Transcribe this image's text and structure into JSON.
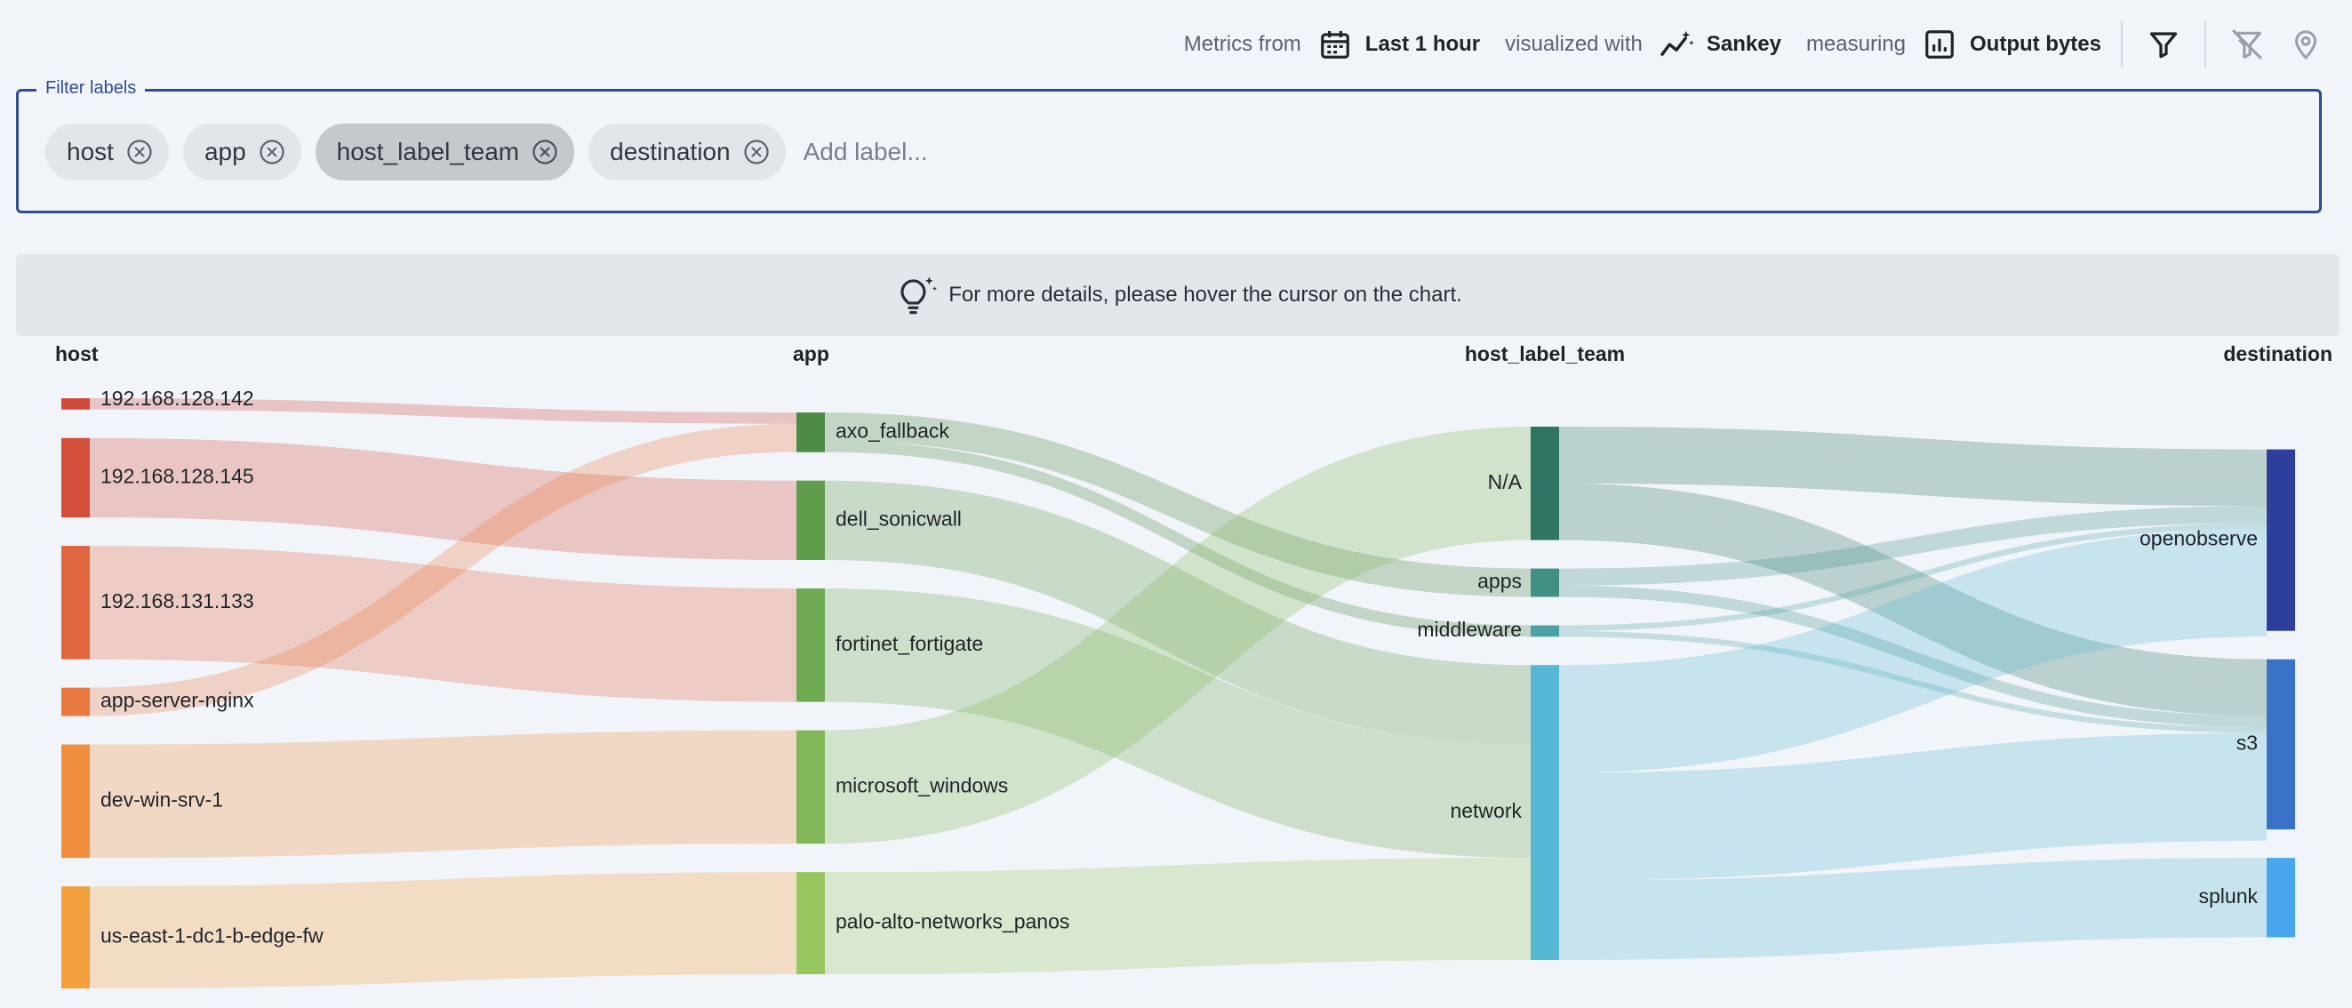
{
  "toolbar": {
    "metrics_from": "Metrics from",
    "time_range": "Last 1 hour",
    "visualized_with": "visualized with",
    "chart_kind": "Sankey",
    "measuring": "measuring",
    "measure": "Output bytes",
    "icons": [
      "calendar-icon",
      "trend-icon",
      "bar-chart-icon",
      "filter-icon",
      "filter-off-icon",
      "location-pin-icon"
    ]
  },
  "filter": {
    "legend": "Filter labels",
    "chips": [
      {
        "label": "host"
      },
      {
        "label": "app"
      },
      {
        "label": "host_label_team"
      },
      {
        "label": "destination"
      }
    ],
    "placeholder": "Add label..."
  },
  "hint": {
    "text": "For more details, please hover the cursor on the chart."
  },
  "chart_data": {
    "type": "sankey",
    "columns": [
      "host",
      "app",
      "host_label_team",
      "destination"
    ],
    "nodes": [
      {
        "id": "192.168.128.142",
        "col": 0,
        "value": 1,
        "color": "#d04a3c"
      },
      {
        "id": "192.168.128.145",
        "col": 0,
        "value": 7,
        "color": "#d4503b"
      },
      {
        "id": "192.168.131.133",
        "col": 0,
        "value": 10,
        "color": "#e06640"
      },
      {
        "id": "app-server-nginx",
        "col": 0,
        "value": 2.5,
        "color": "#e87a40"
      },
      {
        "id": "dev-win-srv-1",
        "col": 0,
        "value": 10,
        "color": "#ef8e3e"
      },
      {
        "id": "us-east-1-dc1-b-edge-fw",
        "col": 0,
        "value": 9,
        "color": "#f4a03e"
      },
      {
        "id": "axo_fallback",
        "col": 1,
        "value": 3.5,
        "color": "#4c8a46"
      },
      {
        "id": "dell_sonicwall",
        "col": 1,
        "value": 7,
        "color": "#5f9c4c"
      },
      {
        "id": "fortinet_fortigate",
        "col": 1,
        "value": 10,
        "color": "#6eaa52"
      },
      {
        "id": "microsoft_windows",
        "col": 1,
        "value": 10,
        "color": "#82b85a"
      },
      {
        "id": "palo-alto-networks_panos",
        "col": 1,
        "value": 9,
        "color": "#98c65e"
      },
      {
        "id": "N/A",
        "col": 2,
        "value": 10,
        "color": "#2f7563"
      },
      {
        "id": "apps",
        "col": 2,
        "value": 2.5,
        "color": "#3f8f84"
      },
      {
        "id": "middleware",
        "col": 2,
        "value": 1,
        "color": "#4ba2a6"
      },
      {
        "id": "network",
        "col": 2,
        "value": 26,
        "color": "#56b8d4"
      },
      {
        "id": "openobserve",
        "col": 3,
        "value": 16,
        "color": "#2e3e9c"
      },
      {
        "id": "s3",
        "col": 3,
        "value": 15,
        "color": "#3a72c8"
      },
      {
        "id": "splunk",
        "col": 3,
        "value": 7,
        "color": "#48a6f0"
      }
    ],
    "links": [
      {
        "source": "192.168.128.142",
        "target": "axo_fallback",
        "value": 1
      },
      {
        "source": "192.168.128.145",
        "target": "dell_sonicwall",
        "value": 7
      },
      {
        "source": "192.168.131.133",
        "target": "fortinet_fortigate",
        "value": 10
      },
      {
        "source": "app-server-nginx",
        "target": "axo_fallback",
        "value": 2.5
      },
      {
        "source": "dev-win-srv-1",
        "target": "microsoft_windows",
        "value": 10
      },
      {
        "source": "us-east-1-dc1-b-edge-fw",
        "target": "palo-alto-networks_panos",
        "value": 9
      },
      {
        "source": "axo_fallback",
        "target": "apps",
        "value": 2.5
      },
      {
        "source": "axo_fallback",
        "target": "middleware",
        "value": 1
      },
      {
        "source": "dell_sonicwall",
        "target": "network",
        "value": 7
      },
      {
        "source": "fortinet_fortigate",
        "target": "network",
        "value": 10
      },
      {
        "source": "microsoft_windows",
        "target": "N/A",
        "value": 10
      },
      {
        "source": "palo-alto-networks_panos",
        "target": "network",
        "value": 9
      },
      {
        "source": "N/A",
        "target": "openobserve",
        "value": 5
      },
      {
        "source": "N/A",
        "target": "s3",
        "value": 5
      },
      {
        "source": "apps",
        "target": "openobserve",
        "value": 1.5
      },
      {
        "source": "apps",
        "target": "s3",
        "value": 1
      },
      {
        "source": "middleware",
        "target": "openobserve",
        "value": 0.5
      },
      {
        "source": "middleware",
        "target": "s3",
        "value": 0.5
      },
      {
        "source": "network",
        "target": "openobserve",
        "value": 9.5
      },
      {
        "source": "network",
        "target": "s3",
        "value": 9.5
      },
      {
        "source": "network",
        "target": "splunk",
        "value": 7
      }
    ]
  }
}
